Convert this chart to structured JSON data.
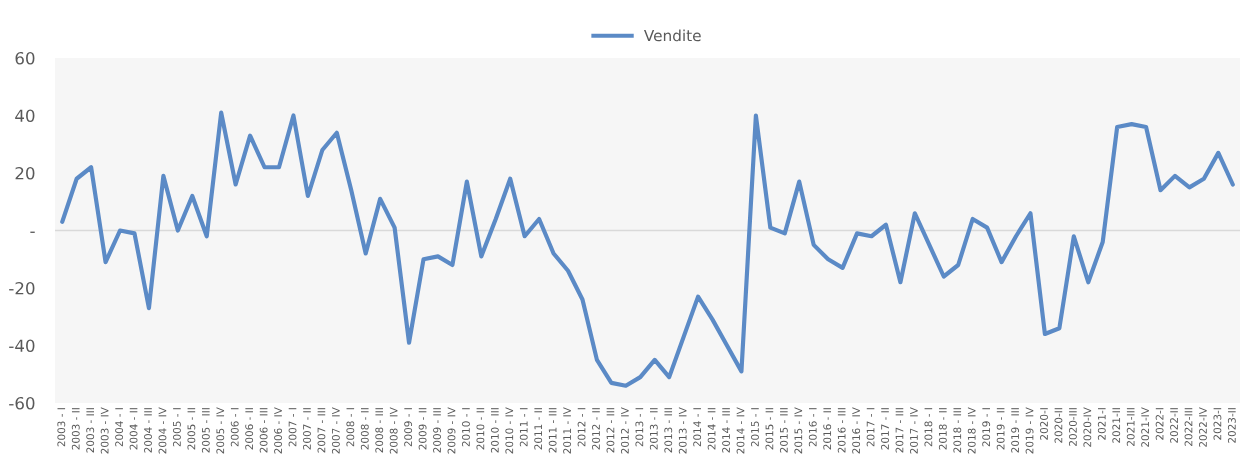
{
  "chart_data": {
    "type": "line",
    "categories": [
      "2003 - I",
      "2003 - II",
      "2003 - III",
      "2003 - IV",
      "2004 - I",
      "2004 - II",
      "2004 - III",
      "2004 - IV",
      "2005 - I",
      "2005 - II",
      "2005 - III",
      "2005 - IV",
      "2006 - I",
      "2006 - II",
      "2006 - III",
      "2006 - IV",
      "2007 - I",
      "2007 - II",
      "2007 - III",
      "2007 - IV",
      "2008 - I",
      "2008 - II",
      "2008 - III",
      "2008 - IV",
      "2009 - I",
      "2009 - II",
      "2009 - III",
      "2009 - IV",
      "2010 - I",
      "2010 - II",
      "2010 - III",
      "2010 - IV",
      "2011 - I",
      "2011 - II",
      "2011 - III",
      "2011 - IV",
      "2012 - I",
      "2012 - II",
      "2012 - III",
      "2012 - IV",
      "2013 - I",
      "2013 - II",
      "2013 - III",
      "2013 - IV",
      "2014 - I",
      "2014 - II",
      "2014 - III",
      "2014 - IV",
      "2015 - I",
      "2015 - II",
      "2015 - III",
      "2015 - IV",
      "2016 - I",
      "2016 - II",
      "2016 - III",
      "2016 - IV",
      "2017 - I",
      "2017 - II",
      "2017 - III",
      "2017 - IV",
      "2018 - I",
      "2018 - II",
      "2018 - III",
      "2018 - IV",
      "2019 - I",
      "2019 - II",
      "2019 - III",
      "2019 - IV",
      "2020-I",
      "2020-II",
      "2020-III",
      "2020-IV",
      "2021-I",
      "2021-II",
      "2021-III",
      "2021-IV",
      "2022-I",
      "2022-II",
      "2022-III",
      "2022-IV",
      "2023-I",
      "2023-II"
    ],
    "series": [
      {
        "name": "Vendite",
        "color": "#5b8ac6",
        "values": [
          3,
          18,
          22,
          -11,
          0,
          -1,
          -27,
          19,
          0,
          12,
          -2,
          41,
          16,
          33,
          22,
          22,
          40,
          12,
          28,
          34,
          14,
          -8,
          11,
          1,
          -39,
          -10,
          -9,
          -12,
          17,
          -9,
          4,
          18,
          -2,
          4,
          -8,
          -14,
          -24,
          -45,
          -53,
          -54,
          -51,
          -45,
          -51,
          -37,
          -23,
          -31,
          -40,
          -49,
          40,
          1,
          -1,
          17,
          -5,
          -10,
          -13,
          -1,
          -2,
          2,
          -18,
          6,
          -5,
          -16,
          -12,
          4,
          1,
          -11,
          -2,
          6,
          -36,
          -34,
          -2,
          -18,
          -4,
          36,
          37,
          36,
          14,
          19,
          15,
          18,
          27,
          16
        ]
      }
    ],
    "ylim": [
      -60,
      60
    ],
    "yticks": [
      -60,
      -40,
      -20,
      {
        "value": 0,
        "label": "-"
      },
      20,
      40,
      60
    ],
    "grid": false,
    "ref_lines": [
      {
        "axis": "y",
        "value": 0,
        "color": "#d9d9d9"
      }
    ],
    "legend": "top",
    "marker": "none",
    "line_style": "solid"
  }
}
